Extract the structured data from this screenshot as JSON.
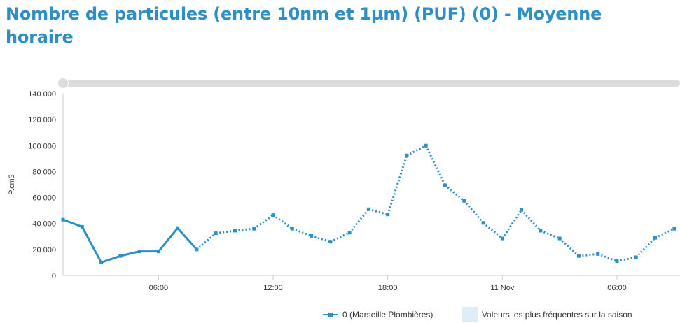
{
  "title": "Nombre de particules (entre 10nm et 1µm) (PUF) (0) - Moyenne horaire",
  "colors": {
    "series": "#2d8fc6",
    "band": "#deeef8",
    "axis": "#cccccc",
    "text": "#333333"
  },
  "chart_data": {
    "type": "line",
    "ylabel": "P.cm3",
    "ylim": [
      0,
      140000
    ],
    "y_ticks": [
      {
        "value": 0,
        "label": "0"
      },
      {
        "value": 20000,
        "label": "20 000"
      },
      {
        "value": 40000,
        "label": "40 000"
      },
      {
        "value": 60000,
        "label": "60 000"
      },
      {
        "value": 80000,
        "label": "80 000"
      },
      {
        "value": 100000,
        "label": "100 000"
      },
      {
        "value": 120000,
        "label": "120 000"
      },
      {
        "value": 140000,
        "label": "140 000"
      }
    ],
    "xlim": [
      "10 Nov 01:00",
      "11 Nov 09:00"
    ],
    "x_ticks": [
      {
        "hour": 6,
        "label": "06:00"
      },
      {
        "hour": 12,
        "label": "12:00"
      },
      {
        "hour": 18,
        "label": "18:00"
      },
      {
        "hour": 24,
        "label": "11 Nov"
      },
      {
        "hour": 30,
        "label": "06:00"
      }
    ],
    "series": [
      {
        "name": "0 (Marseille Plombières)",
        "hours": [
          1,
          2,
          3,
          4,
          5,
          6,
          7,
          8,
          9,
          10,
          11,
          12,
          13,
          14,
          15,
          16,
          17,
          18,
          19,
          20,
          21,
          22,
          23,
          24,
          25,
          26,
          27,
          28,
          29,
          30,
          31,
          32,
          33
        ],
        "values": [
          43000,
          37500,
          10000,
          15000,
          18500,
          18500,
          36500,
          20000,
          32500,
          34500,
          36000,
          46500,
          36000,
          30500,
          26000,
          33000,
          51000,
          47000,
          92500,
          100000,
          69500,
          57500,
          40500,
          28500,
          50500,
          34500,
          28500,
          15000,
          16500,
          11000,
          14000,
          29000,
          36000
        ],
        "valid": [
          true,
          true,
          true,
          true,
          true,
          true,
          true,
          true,
          false,
          false,
          false,
          false,
          false,
          false,
          false,
          false,
          false,
          false,
          false,
          false,
          false,
          false,
          false,
          false,
          false,
          false,
          false,
          false,
          false,
          false,
          false,
          false,
          false
        ]
      }
    ],
    "legend": [
      {
        "label": "0 (Marseille Plombières)",
        "kind": "series"
      },
      {
        "label": "Valeurs les plus fréquentes sur la saison",
        "kind": "band"
      }
    ],
    "legend_position": "bottom"
  }
}
